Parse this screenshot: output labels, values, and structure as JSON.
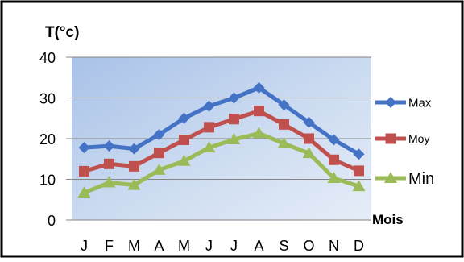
{
  "chart_data": {
    "type": "line",
    "ylabel": "T(°c)",
    "xlabel": "Mois",
    "categories": [
      "J",
      "F",
      "M",
      "A",
      "M",
      "J",
      "J",
      "A",
      "S",
      "O",
      "N",
      "D"
    ],
    "ylim": [
      0,
      40
    ],
    "yticks": [
      "0",
      "10",
      "20",
      "30",
      "40"
    ],
    "grid": true,
    "legend": "right",
    "series": [
      {
        "name": "Max",
        "color": "#4472c4",
        "marker": "diamond",
        "values": [
          17.8,
          18.2,
          17.5,
          21,
          25,
          28,
          30,
          32.5,
          28.3,
          24,
          19.7,
          16.2
        ]
      },
      {
        "name": "Moy",
        "color": "#c0504d",
        "marker": "square",
        "values": [
          12,
          13.8,
          13.2,
          16.5,
          19.7,
          22.8,
          24.8,
          26.8,
          23.5,
          20,
          14.8,
          12.1
        ]
      },
      {
        "name": "Min",
        "color": "#9bbb59",
        "marker": "triangle",
        "values": [
          6.7,
          9.2,
          8.6,
          12.3,
          14.5,
          17.8,
          19.8,
          21.3,
          18.8,
          16.4,
          10.3,
          8.3
        ]
      }
    ]
  }
}
